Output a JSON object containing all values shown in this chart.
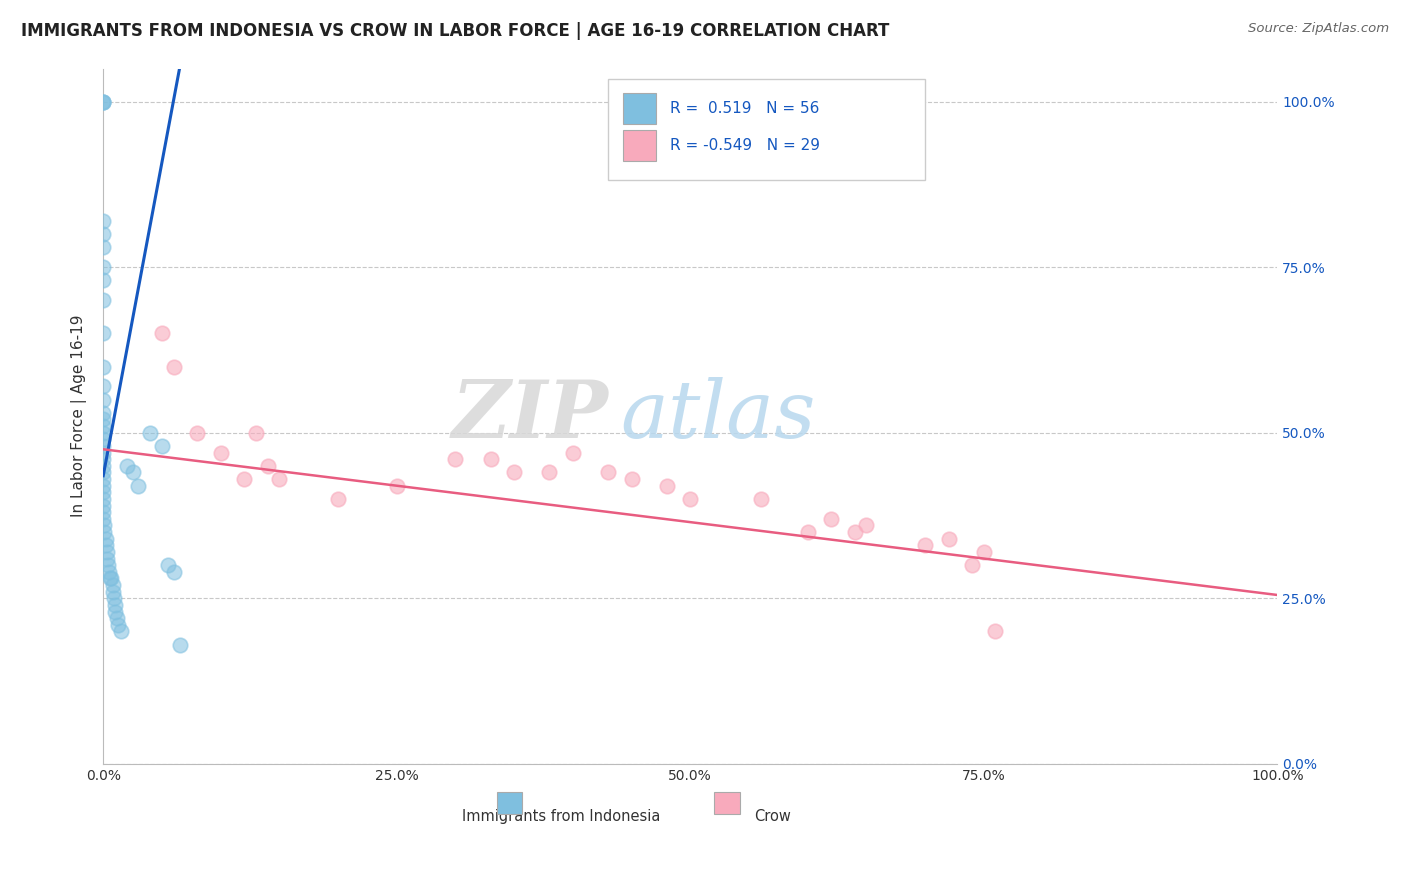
{
  "title": "IMMIGRANTS FROM INDONESIA VS CROW IN LABOR FORCE | AGE 16-19 CORRELATION CHART",
  "source": "Source: ZipAtlas.com",
  "ylabel": "In Labor Force | Age 16-19",
  "legend_labels": [
    "Immigrants from Indonesia",
    "Crow"
  ],
  "blue_R": 0.519,
  "blue_N": 56,
  "pink_R": -0.549,
  "pink_N": 29,
  "blue_color": "#7fbfdf",
  "pink_color": "#f8aabc",
  "blue_line_color": "#1558c0",
  "pink_line_color": "#e85c80",
  "watermark_zip": "ZIP",
  "watermark_atlas": "atlas",
  "blue_points_x": [
    0.0,
    0.0,
    0.0,
    0.0,
    0.0,
    0.0,
    0.0,
    0.0,
    0.0,
    0.0,
    0.0,
    0.0,
    0.0,
    0.0,
    0.0,
    0.0,
    0.0,
    0.0,
    0.0,
    0.0,
    0.0,
    0.0,
    0.0,
    0.0,
    0.0,
    0.0,
    0.0,
    0.0,
    0.0,
    0.0,
    0.001,
    0.001,
    0.002,
    0.002,
    0.003,
    0.003,
    0.004,
    0.005,
    0.006,
    0.007,
    0.008,
    0.008,
    0.009,
    0.01,
    0.01,
    0.012,
    0.013,
    0.015,
    0.02,
    0.025,
    0.03,
    0.04,
    0.05,
    0.055,
    0.06,
    0.065
  ],
  "blue_points_y": [
    1.0,
    1.0,
    1.0,
    0.82,
    0.8,
    0.78,
    0.75,
    0.73,
    0.7,
    0.65,
    0.6,
    0.57,
    0.55,
    0.53,
    0.52,
    0.51,
    0.5,
    0.49,
    0.48,
    0.47,
    0.46,
    0.45,
    0.44,
    0.43,
    0.42,
    0.41,
    0.4,
    0.39,
    0.38,
    0.37,
    0.36,
    0.35,
    0.34,
    0.33,
    0.32,
    0.31,
    0.3,
    0.29,
    0.28,
    0.28,
    0.27,
    0.26,
    0.25,
    0.24,
    0.23,
    0.22,
    0.21,
    0.2,
    0.45,
    0.44,
    0.42,
    0.5,
    0.48,
    0.3,
    0.29,
    0.18
  ],
  "pink_points_x": [
    0.05,
    0.06,
    0.08,
    0.1,
    0.12,
    0.13,
    0.14,
    0.15,
    0.2,
    0.25,
    0.3,
    0.33,
    0.35,
    0.38,
    0.4,
    0.43,
    0.45,
    0.48,
    0.5,
    0.56,
    0.6,
    0.62,
    0.64,
    0.65,
    0.7,
    0.72,
    0.74,
    0.75,
    0.76
  ],
  "pink_points_y": [
    0.65,
    0.6,
    0.5,
    0.47,
    0.43,
    0.5,
    0.45,
    0.43,
    0.4,
    0.42,
    0.46,
    0.46,
    0.44,
    0.44,
    0.47,
    0.44,
    0.43,
    0.42,
    0.4,
    0.4,
    0.35,
    0.37,
    0.35,
    0.36,
    0.33,
    0.34,
    0.3,
    0.32,
    0.2
  ],
  "xlim": [
    0.0,
    1.0
  ],
  "ylim": [
    0.0,
    1.05
  ],
  "blue_trend_x": [
    0.0,
    0.065
  ],
  "blue_trend_y": [
    0.435,
    1.05
  ],
  "pink_trend_x": [
    0.0,
    1.0
  ],
  "pink_trend_y": [
    0.475,
    0.255
  ],
  "x_ticks": [
    0.0,
    0.25,
    0.5,
    0.75,
    1.0
  ],
  "y_ticks": [
    0.0,
    0.25,
    0.5,
    0.75,
    1.0
  ],
  "bg_color": "#ffffff",
  "grid_color": "#c8c8c8",
  "title_color": "#222222",
  "source_color": "#666666",
  "axis_tick_color": "#333333",
  "right_tick_color": "#1558c0"
}
